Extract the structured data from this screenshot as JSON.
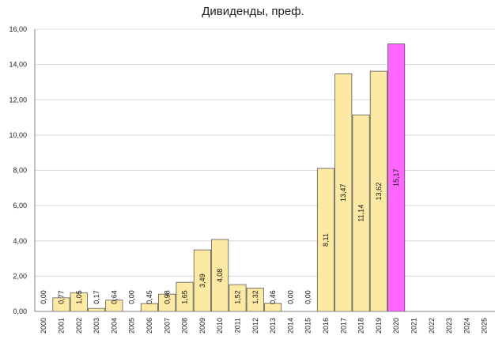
{
  "chart_data": {
    "type": "bar",
    "title": "Дивиденды, преф.",
    "xlabel": "",
    "ylabel": "",
    "categories": [
      "2000",
      "2001",
      "2002",
      "2003",
      "2004",
      "2005",
      "2006",
      "2007",
      "2008",
      "2009",
      "2010",
      "2011",
      "2012",
      "2013",
      "2014",
      "2015",
      "2016",
      "2017",
      "2018",
      "2019",
      "2020",
      "2021",
      "2022",
      "2023",
      "2024",
      "2025"
    ],
    "values": [
      0.0,
      0.77,
      1.05,
      0.17,
      0.64,
      0.0,
      0.45,
      0.98,
      1.65,
      3.49,
      4.08,
      1.52,
      1.32,
      0.46,
      0.0,
      0.0,
      8.11,
      13.47,
      11.14,
      13.62,
      15.17,
      null,
      null,
      null,
      null,
      null
    ],
    "data_labels": [
      "0,00",
      "0,77",
      "1,05",
      "0,17",
      "0,64",
      "0,00",
      "0,45",
      "0,98",
      "1,65",
      "3,49",
      "4,08",
      "1,52",
      "1,32",
      "0,46",
      "0,00",
      "0,00",
      "8,11",
      "13,47",
      "11,14",
      "13,62",
      "15,17",
      "",
      "",
      "",
      "",
      ""
    ],
    "highlight_category": "2020",
    "ylim": [
      0,
      16
    ],
    "yticks": [
      "0,00",
      "2,00",
      "4,00",
      "6,00",
      "8,00",
      "10,00",
      "12,00",
      "14,00",
      "16,00"
    ],
    "grid": "horizontal",
    "legend": "none",
    "colors": {
      "bar": "#FCE9A4",
      "highlight": "#FF66FF",
      "bar_edge": "#595959",
      "grid": "#D9D9D9"
    }
  }
}
